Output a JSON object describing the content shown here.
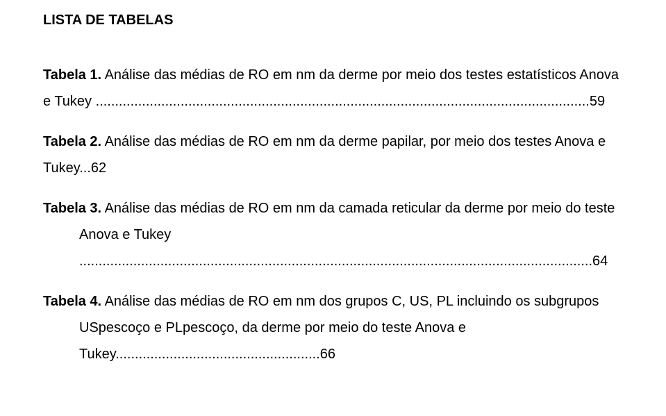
{
  "section_title": "LISTA DE TABELAS",
  "entries": [
    {
      "label": "Tabela 1.",
      "text": " Análise das médias de RO em nm da derme por meio dos testes estatísticos Anova e Tukey ................................................................................................................................59",
      "hang": false
    },
    {
      "label": "Tabela 2.",
      "text": " Análise das médias de RO em nm da derme papilar, por meio dos testes Anova e Tukey...62",
      "hang": false
    },
    {
      "label": "Tabela 3.",
      "text": " Análise das médias de RO em nm da camada reticular da derme por meio do teste Anova e Tukey .....................................................................................................................................64",
      "hang": true
    },
    {
      "label": "Tabela 4.",
      "text": " Análise das médias de RO em nm dos grupos C, US, PL incluindo os subgrupos USpescoço e PLpescoço, da derme por meio do teste Anova e Tukey.....................................................66",
      "hang": true
    }
  ]
}
